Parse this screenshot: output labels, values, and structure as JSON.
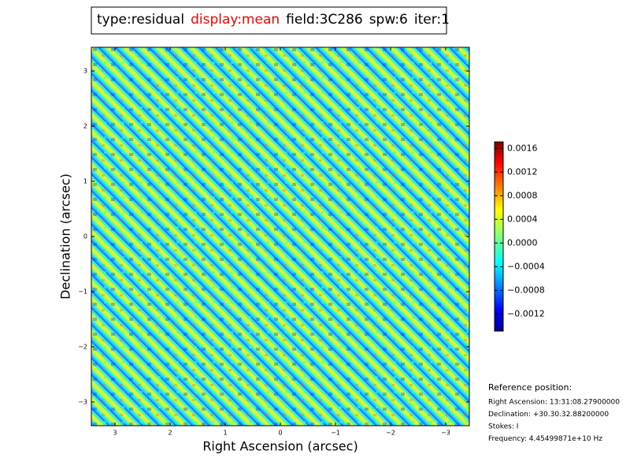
{
  "chart_data": {
    "type": "image",
    "title_parts": [
      {
        "text": "type:residual",
        "color": "#000000"
      },
      {
        "text": "display:mean",
        "color": "#ff0000"
      },
      {
        "text": "field:3C286",
        "color": "#000000"
      },
      {
        "text": "spw:6",
        "color": "#000000"
      },
      {
        "text": "iter:1",
        "color": "#000000"
      }
    ],
    "xlabel": "Right Ascension (arcsec)",
    "ylabel": "Declination (arcsec)",
    "xlim": [
      3.43,
      -3.43
    ],
    "ylim": [
      -3.43,
      3.43
    ],
    "xticks": [
      3,
      2,
      1,
      0,
      {
        "value": -1,
        "label": "−1"
      },
      {
        "value": -2,
        "label": "−2"
      },
      {
        "value": -3,
        "label": "−3"
      }
    ],
    "yticks": [
      {
        "value": -3,
        "label": "−3"
      },
      {
        "value": -2,
        "label": "−2"
      },
      {
        "value": -1,
        "label": "−1"
      },
      0,
      1,
      2,
      3
    ],
    "colorbar": {
      "clim": [
        -0.00149,
        0.00171
      ],
      "ticks": [
        {
          "value": 0.0016,
          "label": "0.0016"
        },
        {
          "value": 0.0012,
          "label": "0.0012"
        },
        {
          "value": 0.0008,
          "label": "0.0008"
        },
        {
          "value": 0.0004,
          "label": "0.0004"
        },
        {
          "value": 0,
          "label": "0.0000"
        },
        {
          "value": -0.0004,
          "label": "−0.0004"
        },
        {
          "value": -0.0008,
          "label": "−0.0008"
        },
        {
          "value": -0.0012,
          "label": "−0.0012"
        }
      ]
    },
    "reference": {
      "heading": "Reference position:",
      "lines": [
        "Right Ascension: 13:31:08.27900000",
        "Declination: +30.30.32.88200000",
        "Stokes: I",
        "Frequency: 4.45499871e+10 Hz"
      ]
    }
  }
}
